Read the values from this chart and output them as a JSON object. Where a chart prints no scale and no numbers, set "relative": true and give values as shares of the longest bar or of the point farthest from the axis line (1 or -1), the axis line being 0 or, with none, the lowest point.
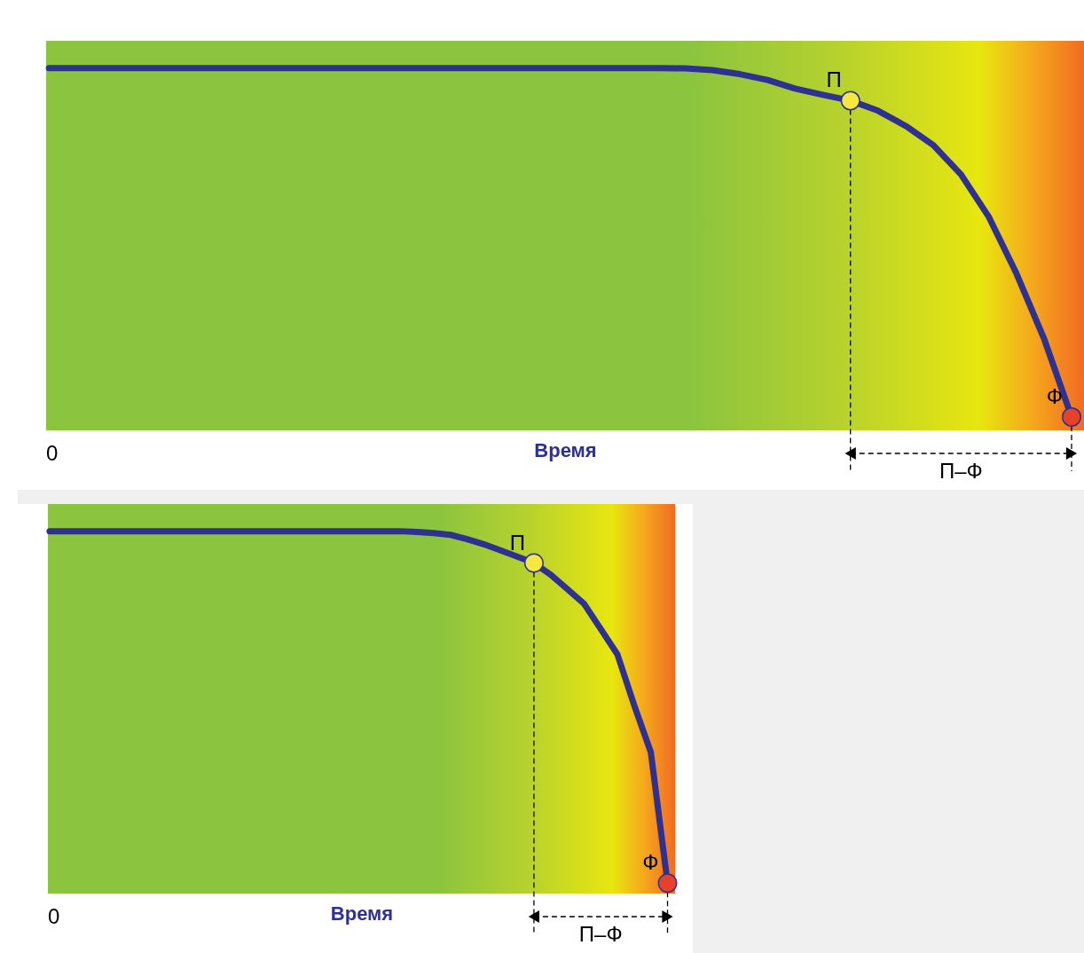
{
  "chart_data": [
    {
      "type": "line",
      "relative": true,
      "xlabel": "Время",
      "line_style": "solid",
      "categories": [
        null,
        null,
        null,
        null,
        null,
        null,
        null,
        null,
        null,
        null,
        null,
        null,
        null,
        null,
        null,
        null,
        null,
        null,
        null,
        null,
        null,
        null,
        null,
        null,
        null,
        null,
        null,
        null,
        null,
        null,
        null,
        null,
        null,
        null,
        null,
        null,
        null,
        null
      ],
      "series": [
        {
          "color": "#2e3192",
          "values": [
            1,
            1,
            1,
            1,
            1,
            1,
            1,
            1,
            1,
            1,
            1,
            1,
            1,
            1,
            1,
            1,
            1,
            1,
            1,
            1,
            1,
            1,
            1,
            0.999,
            0.994,
            0.983,
            0.967,
            0.943,
            0.926,
            0.91,
            0.882,
            0.84,
            0.787,
            0.706,
            0.59,
            0.434,
            0.254,
            0.037
          ]
        }
      ],
      "annotations": [
        "0",
        {
          "text": "П",
          "y": 0.91
        },
        "Ф",
        "П–Ф"
      ]
    },
    {
      "type": "line",
      "relative": true,
      "xlabel": "Время",
      "line_style": "solid",
      "categories": [
        null,
        null,
        null,
        null,
        null,
        null,
        null,
        null,
        null,
        null,
        null,
        null,
        null,
        null,
        null,
        null,
        null,
        null,
        null,
        null,
        null,
        null,
        null,
        null,
        null,
        null,
        null,
        null,
        null,
        null,
        null,
        null,
        null,
        null,
        null,
        null,
        null,
        null
      ],
      "series": [
        {
          "color": "#2e3192",
          "values": [
            1,
            1,
            1,
            1,
            1,
            1,
            1,
            1,
            1,
            1,
            1,
            1,
            1,
            1,
            1,
            1,
            1,
            1,
            1,
            1,
            1,
            1,
            0.998,
            0.995,
            0.99,
            0.978,
            0.964,
            0.947,
            0.93,
            0.912,
            0.88,
            0.84,
            0.8,
            0.73,
            0.66,
            0.52,
            0.39,
            0.029
          ]
        }
      ],
      "annotations": [
        "0",
        {
          "text": "П",
          "y": 0.912
        },
        "Ф",
        "П–Ф"
      ]
    }
  ]
}
